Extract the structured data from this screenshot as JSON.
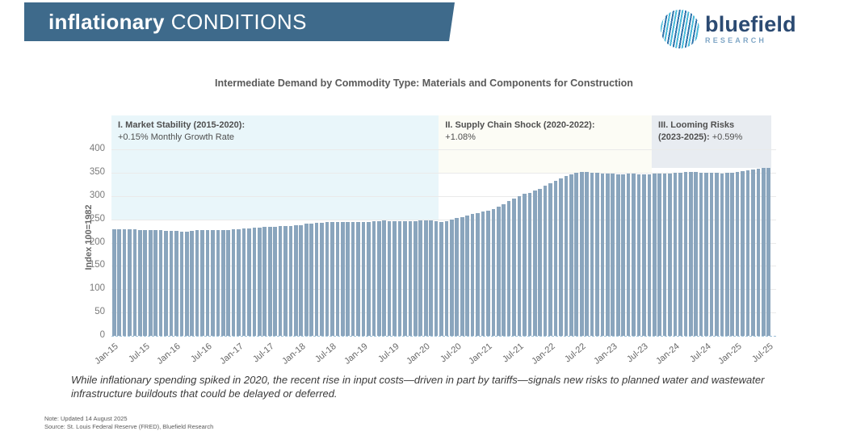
{
  "header": {
    "banner_title_bold": "inflationary",
    "banner_title_regular": "CONDITIONS",
    "banner_color": "#3e6a8b"
  },
  "logo": {
    "name": "bluefield",
    "subtitle": "RESEARCH",
    "icon": "striped-globe-icon",
    "name_color": "#2b4a72",
    "subtitle_color": "#7fa6c6"
  },
  "chart_title": "Intermediate Demand by Commodity Type: Materials and Components for Construction",
  "caption": "While inflationary spending spiked in 2020, the recent rise in input costs—driven in part by tariffs—signals new risks to planned water and wastewater infrastructure buildouts that could be delayed or deferred.",
  "footnotes": {
    "note": "Note: Updated 14 August 2025",
    "source": "Source: St. Louis Federal Reserve (FRED), Bluefield Research"
  },
  "chart_data": {
    "type": "bar",
    "title": "Intermediate Demand by Commodity Type: Materials and Components for Construction",
    "xlabel": "",
    "ylabel": "Index 100=1982",
    "ylim": [
      0,
      400
    ],
    "grid": true,
    "bar_color": "#8aa5bd",
    "y_ticks": [
      0,
      50,
      100,
      150,
      200,
      250,
      300,
      350,
      400
    ],
    "x_start": "Jan-15",
    "x_end": "Jul-25",
    "frequency": "monthly",
    "x_tick_labels": [
      "Jan-15",
      "Jul-15",
      "Jan-16",
      "Jul-16",
      "Jan-17",
      "Jul-17",
      "Jan-18",
      "Jul-18",
      "Jan-19",
      "Jul-19",
      "Jan-20",
      "Jul-20",
      "Jan-21",
      "Jul-21",
      "Jan-22",
      "Jul-22",
      "Jan-23",
      "Jul-23",
      "Jan-24",
      "Jul-24",
      "Jan-25",
      "Jul-25"
    ],
    "values": [
      228,
      228,
      228,
      228,
      228,
      227,
      227,
      227,
      226,
      226,
      225,
      225,
      225,
      224,
      224,
      225,
      226,
      227,
      227,
      227,
      227,
      227,
      227,
      228,
      229,
      230,
      231,
      232,
      232,
      233,
      233,
      234,
      235,
      236,
      236,
      237,
      238,
      240,
      241,
      242,
      243,
      244,
      244,
      245,
      245,
      245,
      245,
      245,
      245,
      245,
      246,
      246,
      247,
      246,
      246,
      246,
      246,
      246,
      246,
      247,
      247,
      247,
      246,
      245,
      246,
      249,
      252,
      255,
      258,
      261,
      264,
      266,
      268,
      272,
      277,
      283,
      289,
      295,
      300,
      304,
      307,
      311,
      316,
      322,
      328,
      333,
      338,
      343,
      347,
      350,
      352,
      351,
      350,
      349,
      348,
      348,
      348,
      347,
      347,
      348,
      348,
      347,
      347,
      347,
      348,
      348,
      348,
      348,
      349,
      350,
      351,
      351,
      351,
      350,
      350,
      350,
      349,
      348,
      349,
      350,
      352,
      353,
      355,
      356,
      358,
      360,
      361
    ],
    "regions": [
      {
        "title": "I. Market Stability (2015-2020):",
        "subtitle_bold": "",
        "subtitle": "+0.15% Monthly Growth Rate",
        "band_color": "#e9f6fa",
        "start_index": 0,
        "end_index": 63,
        "band_bottom_value": 250
      },
      {
        "title": "II. Supply Chain Shock (2020-2022):",
        "subtitle_bold": "",
        "subtitle": "+1.08%",
        "band_color": "#fcfcf5",
        "start_index": 63,
        "end_index": 104,
        "band_bottom_value": 350
      },
      {
        "title": "III. Looming Risks",
        "subtitle_bold": "(2023-2025):",
        "subtitle": "+0.59%",
        "band_color": "#e8ecf1",
        "start_index": 104,
        "end_index": 127,
        "band_bottom_value": 361
      }
    ]
  }
}
